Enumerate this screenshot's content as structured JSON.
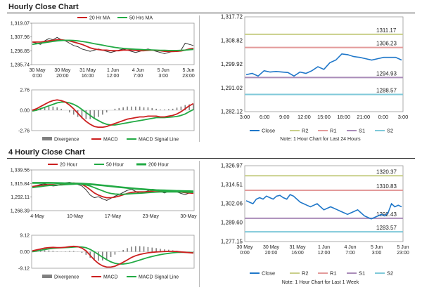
{
  "sections": [
    {
      "title": "Hourly Close Chart"
    },
    {
      "title": "4 Hourly Close Chart"
    }
  ],
  "colors": {
    "close": "#1f77c9",
    "ma_short": "#cc1f1f",
    "ma_long": "#22aa44",
    "r2": "#c9cf8a",
    "r1": "#e39a9a",
    "s1": "#a98bb8",
    "s2": "#7fc9d9",
    "divergence": "#808080"
  },
  "chart_data": [
    {
      "id": "hourly_price",
      "type": "line",
      "legend": [
        "20 Hr MA",
        "50 Hrs MA"
      ],
      "y_ticks": [
        "1,319.07",
        "1,307.96",
        "1,296.85",
        "1,285.74"
      ],
      "ylim": [
        1285.74,
        1319.07
      ],
      "x_ticks": [
        [
          "30 May",
          "0:00"
        ],
        [
          "30 May",
          "20:00"
        ],
        [
          "31 May",
          "16:00"
        ],
        [
          "1 Jun",
          "12:00"
        ],
        [
          "4 Jun",
          "7:00"
        ],
        [
          "5 Jun",
          "3:00"
        ],
        [
          "5 Jun",
          "23:00"
        ]
      ],
      "series": [
        {
          "name": "Close",
          "values": [
            1304,
            1303,
            1302,
            1305,
            1307,
            1306,
            1308,
            1306,
            1305,
            1303,
            1301,
            1300,
            1298,
            1297,
            1296,
            1297,
            1298,
            1297,
            1296,
            1295,
            1296,
            1297,
            1298,
            1297,
            1296,
            1295,
            1296,
            1297,
            1298,
            1297,
            1296,
            1295,
            1294,
            1295,
            1296,
            1296,
            1297,
            1303,
            1302,
            1301
          ]
        },
        {
          "name": "20 Hr MA",
          "values": [
            1304,
            1304,
            1304,
            1304.5,
            1305,
            1305.5,
            1306,
            1306,
            1305.5,
            1305,
            1304,
            1303,
            1302,
            1300.5,
            1299,
            1298,
            1297.5,
            1297,
            1297,
            1296.5,
            1296.5,
            1296.5,
            1297,
            1297,
            1297,
            1296.8,
            1296.5,
            1296.5,
            1296.8,
            1297,
            1296.8,
            1296.4,
            1296,
            1295.8,
            1295.8,
            1296,
            1296.3,
            1297,
            1298,
            1298.5
          ]
        },
        {
          "name": "50 Hrs MA",
          "values": [
            1302,
            1302.5,
            1303,
            1303.5,
            1304,
            1304.5,
            1305,
            1305.3,
            1305.5,
            1305.5,
            1305.3,
            1305,
            1304.5,
            1304,
            1303.3,
            1302.6,
            1302,
            1301.3,
            1300.6,
            1300,
            1299.4,
            1298.9,
            1298.5,
            1298.2,
            1298,
            1297.8,
            1297.6,
            1297.4,
            1297.3,
            1297.2,
            1297,
            1296.9,
            1296.8,
            1296.7,
            1296.7,
            1296.7,
            1296.8,
            1297,
            1297.3,
            1297.6
          ]
        }
      ]
    },
    {
      "id": "hourly_macd",
      "type": "line",
      "legend": [
        "Divergence",
        "MACD",
        "MACD Signal Line"
      ],
      "y_ticks": [
        "2.76",
        "0.00",
        "-2.76"
      ],
      "ylim": [
        -2.76,
        2.76
      ],
      "series": [
        {
          "name": "MACD",
          "values": [
            0,
            0.2,
            0.5,
            0.8,
            1.1,
            1.3,
            1.4,
            1.3,
            1.1,
            0.7,
            0.2,
            -0.4,
            -1.0,
            -1.5,
            -1.9,
            -2.2,
            -2.3,
            -2.3,
            -2.2,
            -2.0,
            -1.8,
            -1.6,
            -1.4,
            -1.2,
            -1.1,
            -1.0,
            -0.9,
            -0.9,
            -0.8,
            -0.8,
            -0.8,
            -0.9,
            -0.9,
            -0.8,
            -0.7,
            -0.5,
            -0.2,
            0.2,
            0.6,
            0.9
          ]
        },
        {
          "name": "MACD Signal Line",
          "values": [
            -0.1,
            0,
            0.2,
            0.4,
            0.6,
            0.8,
            1.0,
            1.1,
            1.1,
            1.0,
            0.8,
            0.5,
            0.1,
            -0.3,
            -0.7,
            -1.1,
            -1.4,
            -1.7,
            -1.9,
            -2.0,
            -2.0,
            -1.9,
            -1.8,
            -1.7,
            -1.6,
            -1.5,
            -1.4,
            -1.3,
            -1.2,
            -1.1,
            -1.0,
            -1.0,
            -1.0,
            -0.95,
            -0.9,
            -0.85,
            -0.7,
            -0.5,
            -0.2,
            0.1
          ]
        }
      ]
    },
    {
      "id": "hourly_pivot",
      "type": "line",
      "y_ticks": [
        "1,317.72",
        "1,308.82",
        "1,299.92",
        "1,291.02",
        "1,282.12"
      ],
      "ylim": [
        1282.12,
        1317.72
      ],
      "x_ticks": [
        "3:00",
        "6:00",
        "9:00",
        "12:00",
        "15:00",
        "18:00",
        "21:00",
        "0:00",
        "3:00"
      ],
      "levels": [
        {
          "name": "R2",
          "label": "1311.17",
          "value": 1311.17
        },
        {
          "name": "R1",
          "label": "1306.23",
          "value": 1306.23
        },
        {
          "name": "S1",
          "label": "1294.93",
          "value": 1294.93
        },
        {
          "name": "S2",
          "label": "1288.57",
          "value": 1288.57
        }
      ],
      "close": [
        1296,
        1296.5,
        1295.5,
        1297.5,
        1297,
        1297.2,
        1297,
        1296.8,
        1295.5,
        1297,
        1296.5,
        1297.5,
        1299,
        1298,
        1300.5,
        1301.5,
        1303.8,
        1303.5,
        1302.8,
        1302.5,
        1302,
        1301.5,
        1302,
        1302.5,
        1302.5,
        1302.5,
        1301.5
      ],
      "legend": [
        "Close",
        "R2",
        "R1",
        "S1",
        "S2"
      ],
      "note": "Note: 1 Hour Chart for Last 24 Hours"
    },
    {
      "id": "four_hourly_price",
      "type": "line",
      "legend": [
        "20 Hour",
        "50 Hour",
        "200 Hour"
      ],
      "y_ticks": [
        "1,339.56",
        "1,315.84",
        "1,292.11",
        "1,268.39"
      ],
      "ylim": [
        1268.39,
        1339.56
      ],
      "x_ticks": [
        "4-May",
        "10-May",
        "17-May",
        "23-May",
        "30-May"
      ],
      "series": [
        {
          "name": "Close",
          "values": [
            1311,
            1313,
            1315,
            1316,
            1314,
            1312,
            1313,
            1316,
            1318,
            1319,
            1317,
            1315,
            1312,
            1305,
            1295,
            1290,
            1292,
            1288,
            1285,
            1289,
            1293,
            1296,
            1300,
            1304,
            1306,
            1302,
            1298,
            1300,
            1303,
            1306,
            1305,
            1302,
            1299,
            1302,
            1304,
            1301,
            1298,
            1296,
            1299,
            1298
          ]
        },
        {
          "name": "20 Hour",
          "values": [
            1311,
            1312,
            1313,
            1314,
            1314.5,
            1314.5,
            1314,
            1314.5,
            1315.5,
            1317,
            1317.5,
            1317,
            1315,
            1311,
            1305,
            1299,
            1295,
            1292,
            1290,
            1290,
            1291,
            1293,
            1295.5,
            1298,
            1300,
            1301,
            1301,
            1301,
            1301.5,
            1302.5,
            1303,
            1302.5,
            1302,
            1302,
            1302,
            1301.5,
            1300.5,
            1299.5,
            1299,
            1298.5
          ]
        },
        {
          "name": "50 Hour",
          "values": [
            1309,
            1310,
            1311,
            1312,
            1313,
            1313.5,
            1314,
            1314,
            1314.5,
            1315,
            1315.5,
            1316,
            1315.5,
            1314,
            1312,
            1309,
            1306,
            1303,
            1300,
            1298,
            1297,
            1296.5,
            1296.5,
            1297,
            1297.5,
            1298,
            1298.5,
            1299,
            1299.5,
            1300,
            1300.5,
            1301,
            1301,
            1301,
            1301,
            1301,
            1300.8,
            1300.5,
            1300.2,
            1300
          ]
        },
        {
          "name": "200 Hour",
          "values": [
            1318,
            1318,
            1318,
            1318,
            1318,
            1317.8,
            1317.6,
            1317.4,
            1317.2,
            1317,
            1316.8,
            1316.6,
            1316.4,
            1316,
            1315.5,
            1314.8,
            1314,
            1313.2,
            1312.4,
            1311.6,
            1310.8,
            1310,
            1309.2,
            1308.4,
            1307.6,
            1307,
            1306.4,
            1305.8,
            1305.3,
            1304.8,
            1304.3,
            1304,
            1303.7,
            1303.4,
            1303.1,
            1302.8,
            1302.6,
            1302.4,
            1302.2,
            1302
          ]
        }
      ]
    },
    {
      "id": "four_hourly_macd",
      "type": "line",
      "legend": [
        "Divergence",
        "MACD",
        "MACD Signal Line"
      ],
      "y_ticks": [
        "9.12",
        "0.00",
        "-9.12"
      ],
      "ylim": [
        -9.12,
        9.12
      ],
      "series": [
        {
          "name": "MACD",
          "values": [
            0.5,
            1,
            1.5,
            2,
            2.3,
            2.4,
            2.3,
            2.3,
            2.5,
            2.8,
            3.0,
            2.8,
            2.0,
            0.5,
            -2,
            -4.5,
            -6.5,
            -7.8,
            -8.5,
            -8.5,
            -8,
            -7,
            -5.8,
            -4.5,
            -3.2,
            -2.2,
            -1.5,
            -1,
            -0.6,
            -0.3,
            -0.1,
            0,
            0.1,
            0.2,
            0.2,
            0.1,
            -0.1,
            -0.3,
            -0.5,
            -0.7
          ]
        },
        {
          "name": "MACD Signal Line",
          "values": [
            0,
            0.4,
            0.8,
            1.2,
            1.6,
            1.9,
            2.1,
            2.2,
            2.3,
            2.4,
            2.6,
            2.7,
            2.6,
            2.2,
            1.3,
            0,
            -1.5,
            -3,
            -4.4,
            -5.6,
            -6.4,
            -6.8,
            -6.8,
            -6.5,
            -6,
            -5.3,
            -4.6,
            -3.9,
            -3.2,
            -2.6,
            -2.1,
            -1.6,
            -1.2,
            -0.9,
            -0.6,
            -0.4,
            -0.3,
            -0.3,
            -0.4,
            -0.5
          ]
        }
      ]
    },
    {
      "id": "four_hourly_pivot",
      "type": "line",
      "y_ticks": [
        "1,326.97",
        "1,314.51",
        "1,302.06",
        "1,289.60",
        "1,277.15"
      ],
      "ylim": [
        1277.15,
        1326.97
      ],
      "x_ticks": [
        [
          "30 May",
          "0:00"
        ],
        [
          "30 May",
          "20:00"
        ],
        [
          "31 May",
          "16:00"
        ],
        [
          "1 Jun",
          "12:00"
        ],
        [
          "4 Jun",
          "7:00"
        ],
        [
          "5 Jun",
          "3:00"
        ],
        [
          "5 Jun",
          "23:00"
        ]
      ],
      "levels": [
        {
          "name": "R2",
          "label": "1320.37",
          "value": 1320.37
        },
        {
          "name": "R1",
          "label": "1310.83",
          "value": 1310.83
        },
        {
          "name": "S1",
          "label": "1292.43",
          "value": 1292.43
        },
        {
          "name": "S2",
          "label": "1283.57",
          "value": 1283.57
        }
      ],
      "close": [
        1304,
        1303,
        1302,
        1305,
        1306,
        1305,
        1307,
        1306,
        1305,
        1307,
        1307.5,
        1306,
        1305,
        1308,
        1307,
        1305,
        1303,
        1302,
        1301,
        1300,
        1301,
        1302,
        1300,
        1298,
        1299,
        1300,
        1299,
        1298,
        1297,
        1296,
        1295,
        1296,
        1297,
        1298,
        1296,
        1294,
        1293,
        1292,
        1293,
        1294,
        1295,
        1294,
        1296,
        1302,
        1300,
        1301,
        1300
      ],
      "legend": [
        "Close",
        "R2",
        "R1",
        "S1",
        "S2"
      ],
      "note": "Note: 1 Hour Chart for Last 1 Week"
    }
  ]
}
